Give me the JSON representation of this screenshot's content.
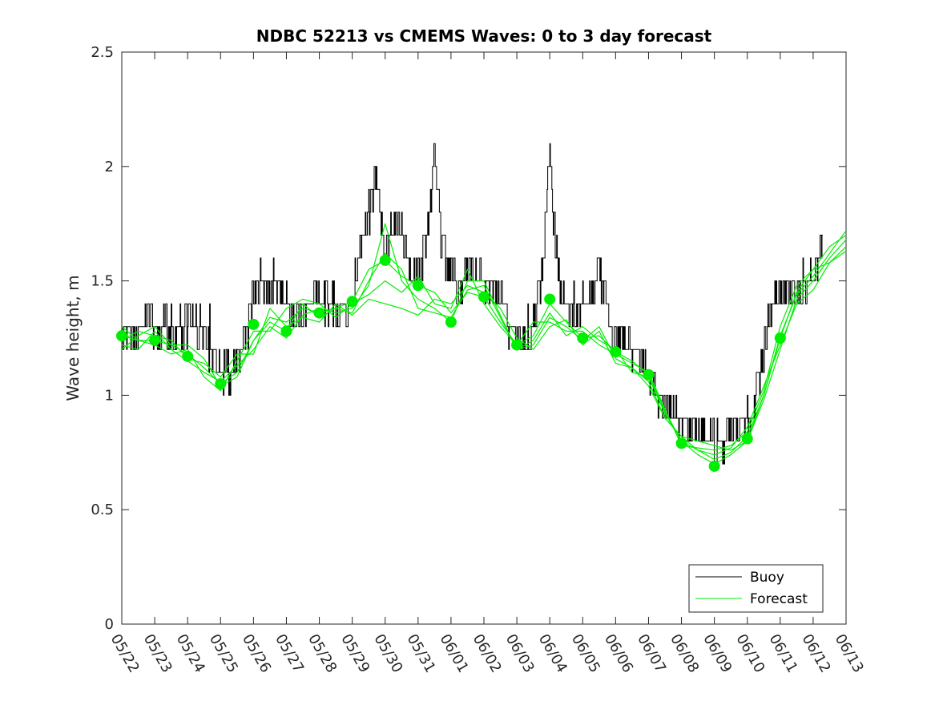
{
  "chart_data": {
    "type": "line",
    "title": "NDBC 52213 vs CMEMS Waves: 0 to 3 day forecast",
    "ylabel": "Wave height, m",
    "xlabel": "",
    "ylim": [
      0,
      2.5
    ],
    "yticks": [
      "0",
      "0.5",
      "1",
      "1.5",
      "2",
      "2.5"
    ],
    "x_tick_labels": [
      "05/22",
      "05/23",
      "05/24",
      "05/25",
      "05/26",
      "05/27",
      "05/28",
      "05/29",
      "05/30",
      "05/31",
      "06/01",
      "06/02",
      "06/03",
      "06/04",
      "06/05",
      "06/06",
      "06/07",
      "06/08",
      "06/09",
      "06/10",
      "06/11",
      "06/12",
      "06/13"
    ],
    "grid": false,
    "legend": {
      "placement": "bottom-right",
      "entries": [
        "Buoy",
        "Forecast"
      ]
    },
    "colors": {
      "buoy": "#000000",
      "forecast": "#00ee00"
    },
    "buoy_anchors": [
      [
        0.0,
        1.28
      ],
      [
        0.3,
        1.24
      ],
      [
        0.6,
        1.28
      ],
      [
        0.8,
        1.35
      ],
      [
        1.0,
        1.28
      ],
      [
        1.3,
        1.3
      ],
      [
        1.6,
        1.28
      ],
      [
        1.9,
        1.3
      ],
      [
        2.2,
        1.32
      ],
      [
        2.5,
        1.25
      ],
      [
        2.8,
        1.18
      ],
      [
        3.0,
        1.12
      ],
      [
        3.2,
        1.1
      ],
      [
        3.4,
        1.12
      ],
      [
        3.6,
        1.2
      ],
      [
        3.8,
        1.3
      ],
      [
        4.0,
        1.42
      ],
      [
        4.2,
        1.48
      ],
      [
        4.5,
        1.5
      ],
      [
        4.8,
        1.45
      ],
      [
        5.0,
        1.38
      ],
      [
        5.3,
        1.35
      ],
      [
        5.6,
        1.38
      ],
      [
        5.9,
        1.42
      ],
      [
        6.2,
        1.4
      ],
      [
        6.5,
        1.38
      ],
      [
        6.8,
        1.4
      ],
      [
        7.0,
        1.45
      ],
      [
        7.2,
        1.6
      ],
      [
        7.4,
        1.75
      ],
      [
        7.6,
        1.85
      ],
      [
        7.7,
        2.0
      ],
      [
        7.8,
        1.9
      ],
      [
        7.9,
        1.7
      ],
      [
        8.0,
        1.6
      ],
      [
        8.2,
        1.72
      ],
      [
        8.4,
        1.78
      ],
      [
        8.6,
        1.65
      ],
      [
        8.8,
        1.55
      ],
      [
        9.0,
        1.52
      ],
      [
        9.2,
        1.62
      ],
      [
        9.4,
        1.88
      ],
      [
        9.5,
        2.05
      ],
      [
        9.6,
        1.9
      ],
      [
        9.7,
        1.7
      ],
      [
        9.9,
        1.55
      ],
      [
        10.0,
        1.52
      ],
      [
        10.2,
        1.45
      ],
      [
        10.4,
        1.5
      ],
      [
        10.6,
        1.58
      ],
      [
        10.8,
        1.52
      ],
      [
        11.0,
        1.5
      ],
      [
        11.2,
        1.48
      ],
      [
        11.4,
        1.45
      ],
      [
        11.6,
        1.38
      ],
      [
        11.8,
        1.28
      ],
      [
        12.0,
        1.25
      ],
      [
        12.2,
        1.22
      ],
      [
        12.4,
        1.25
      ],
      [
        12.6,
        1.4
      ],
      [
        12.8,
        1.6
      ],
      [
        12.9,
        1.85
      ],
      [
        13.0,
        2.05
      ],
      [
        13.1,
        1.8
      ],
      [
        13.2,
        1.6
      ],
      [
        13.4,
        1.42
      ],
      [
        13.6,
        1.35
      ],
      [
        13.8,
        1.38
      ],
      [
        14.0,
        1.4
      ],
      [
        14.2,
        1.42
      ],
      [
        14.4,
        1.5
      ],
      [
        14.5,
        1.55
      ],
      [
        14.7,
        1.4
      ],
      [
        14.9,
        1.28
      ],
      [
        15.0,
        1.25
      ],
      [
        15.2,
        1.25
      ],
      [
        15.4,
        1.22
      ],
      [
        15.6,
        1.2
      ],
      [
        15.8,
        1.15
      ],
      [
        16.0,
        1.1
      ],
      [
        16.2,
        1.05
      ],
      [
        16.4,
        0.98
      ],
      [
        16.6,
        0.93
      ],
      [
        16.8,
        0.9
      ],
      [
        17.0,
        0.88
      ],
      [
        17.2,
        0.86
      ],
      [
        17.4,
        0.85
      ],
      [
        17.6,
        0.84
      ],
      [
        17.8,
        0.82
      ],
      [
        18.0,
        0.8
      ],
      [
        18.2,
        0.8
      ],
      [
        18.4,
        0.82
      ],
      [
        18.6,
        0.84
      ],
      [
        18.8,
        0.86
      ],
      [
        19.0,
        0.88
      ],
      [
        19.2,
        0.95
      ],
      [
        19.4,
        1.12
      ],
      [
        19.6,
        1.3
      ],
      [
        19.8,
        1.4
      ],
      [
        20.0,
        1.45
      ],
      [
        20.2,
        1.48
      ],
      [
        20.4,
        1.45
      ],
      [
        20.6,
        1.45
      ],
      [
        20.8,
        1.48
      ],
      [
        21.0,
        1.55
      ],
      [
        21.2,
        1.62
      ],
      [
        21.3,
        1.65
      ]
    ],
    "forecast_dots": [
      [
        0,
        1.26
      ],
      [
        1,
        1.24
      ],
      [
        2,
        1.17
      ],
      [
        3,
        1.05
      ],
      [
        4,
        1.31
      ],
      [
        5,
        1.28
      ],
      [
        6,
        1.36
      ],
      [
        7,
        1.41
      ],
      [
        8,
        1.59
      ],
      [
        9,
        1.48
      ],
      [
        10,
        1.32
      ],
      [
        11,
        1.43
      ],
      [
        12,
        1.22
      ],
      [
        13,
        1.42
      ],
      [
        14,
        1.25
      ],
      [
        15,
        1.19
      ],
      [
        16,
        1.09
      ],
      [
        17,
        0.79
      ],
      [
        18,
        0.69
      ],
      [
        19,
        0.81
      ],
      [
        20,
        1.25
      ]
    ],
    "forecast_series": [
      {
        "values": [
          [
            0,
            1.26
          ],
          [
            0.5,
            1.24
          ],
          [
            1,
            1.24
          ],
          [
            1.5,
            1.22
          ],
          [
            2,
            1.18
          ],
          [
            2.5,
            1.12
          ],
          [
            3,
            1.05
          ],
          [
            3.5,
            1.1
          ],
          [
            4,
            1.24
          ],
          [
            4.5,
            1.34
          ],
          [
            5,
            1.32
          ],
          [
            5.5,
            1.38
          ],
          [
            6,
            1.36
          ],
          [
            6.5,
            1.38
          ],
          [
            7,
            1.41
          ],
          [
            7.5,
            1.55
          ],
          [
            8,
            1.59
          ],
          [
            8.5,
            1.52
          ],
          [
            9,
            1.48
          ],
          [
            9.5,
            1.45
          ],
          [
            10,
            1.36
          ],
          [
            10.5,
            1.45
          ],
          [
            11,
            1.43
          ],
          [
            11.5,
            1.32
          ],
          [
            12,
            1.22
          ],
          [
            12.5,
            1.26
          ],
          [
            13,
            1.4
          ],
          [
            13.5,
            1.32
          ],
          [
            14,
            1.25
          ],
          [
            14.5,
            1.26
          ],
          [
            15,
            1.19
          ],
          [
            15.5,
            1.15
          ],
          [
            16,
            1.09
          ],
          [
            16.5,
            0.93
          ],
          [
            17,
            0.8
          ],
          [
            17.5,
            0.76
          ],
          [
            18,
            0.72
          ],
          [
            18.5,
            0.75
          ],
          [
            19,
            0.82
          ],
          [
            19.5,
            1.0
          ],
          [
            20,
            1.25
          ],
          [
            20.5,
            1.45
          ],
          [
            21,
            1.55
          ],
          [
            21.5,
            1.65
          ],
          [
            22,
            1.7
          ]
        ]
      },
      {
        "values": [
          [
            0,
            1.22
          ],
          [
            0.5,
            1.2
          ],
          [
            1,
            1.28
          ],
          [
            1.5,
            1.2
          ],
          [
            2,
            1.15
          ],
          [
            2.5,
            1.1
          ],
          [
            3,
            1.06
          ],
          [
            3.5,
            1.13
          ],
          [
            4,
            1.2
          ],
          [
            4.5,
            1.3
          ],
          [
            5,
            1.25
          ],
          [
            5.5,
            1.35
          ],
          [
            6,
            1.38
          ],
          [
            6.5,
            1.36
          ],
          [
            7,
            1.38
          ],
          [
            7.5,
            1.48
          ],
          [
            8,
            1.75
          ],
          [
            8.5,
            1.5
          ],
          [
            9,
            1.42
          ],
          [
            9.5,
            1.38
          ],
          [
            10,
            1.32
          ],
          [
            10.5,
            1.5
          ],
          [
            11,
            1.5
          ],
          [
            11.5,
            1.35
          ],
          [
            12,
            1.2
          ],
          [
            12.5,
            1.22
          ],
          [
            13,
            1.34
          ],
          [
            13.5,
            1.3
          ],
          [
            14,
            1.24
          ],
          [
            14.5,
            1.3
          ],
          [
            15,
            1.16
          ],
          [
            15.5,
            1.12
          ],
          [
            16,
            1.06
          ],
          [
            16.5,
            0.9
          ],
          [
            17,
            0.82
          ],
          [
            17.5,
            0.8
          ],
          [
            18,
            0.78
          ],
          [
            18.5,
            0.76
          ],
          [
            19,
            0.8
          ],
          [
            19.5,
            0.98
          ],
          [
            20,
            1.2
          ],
          [
            20.5,
            1.42
          ],
          [
            21,
            1.5
          ],
          [
            21.5,
            1.6
          ],
          [
            22,
            1.68
          ]
        ]
      },
      {
        "values": [
          [
            0,
            1.3
          ],
          [
            0.5,
            1.24
          ],
          [
            1,
            1.22
          ],
          [
            1.5,
            1.18
          ],
          [
            2,
            1.2
          ],
          [
            2.5,
            1.08
          ],
          [
            3,
            1.02
          ],
          [
            3.5,
            1.15
          ],
          [
            4,
            1.28
          ],
          [
            4.5,
            1.28
          ],
          [
            5,
            1.38
          ],
          [
            5.5,
            1.42
          ],
          [
            6,
            1.4
          ],
          [
            6.5,
            1.34
          ],
          [
            7,
            1.4
          ],
          [
            7.5,
            1.44
          ],
          [
            8,
            1.5
          ],
          [
            8.5,
            1.45
          ],
          [
            9,
            1.52
          ],
          [
            9.5,
            1.4
          ],
          [
            10,
            1.38
          ],
          [
            10.5,
            1.55
          ],
          [
            11,
            1.4
          ],
          [
            11.5,
            1.3
          ],
          [
            12,
            1.22
          ],
          [
            12.5,
            1.32
          ],
          [
            13,
            1.32
          ],
          [
            13.5,
            1.28
          ],
          [
            14,
            1.28
          ],
          [
            14.5,
            1.22
          ],
          [
            15,
            1.18
          ],
          [
            15.5,
            1.14
          ],
          [
            16,
            1.1
          ],
          [
            16.5,
            0.94
          ],
          [
            17,
            0.78
          ],
          [
            17.5,
            0.77
          ],
          [
            18,
            0.76
          ],
          [
            18.5,
            0.78
          ],
          [
            19,
            0.84
          ],
          [
            19.5,
            1.02
          ],
          [
            20,
            1.3
          ],
          [
            20.5,
            1.48
          ],
          [
            21,
            1.55
          ],
          [
            21.5,
            1.58
          ],
          [
            22,
            1.63
          ]
        ]
      },
      {
        "values": [
          [
            0,
            1.24
          ],
          [
            0.5,
            1.28
          ],
          [
            1,
            1.26
          ],
          [
            1.5,
            1.24
          ],
          [
            2,
            1.16
          ],
          [
            2.5,
            1.14
          ],
          [
            3,
            1.08
          ],
          [
            3.5,
            1.18
          ],
          [
            4,
            1.18
          ],
          [
            4.5,
            1.38
          ],
          [
            5,
            1.3
          ],
          [
            5.5,
            1.34
          ],
          [
            6,
            1.32
          ],
          [
            6.5,
            1.4
          ],
          [
            7,
            1.35
          ],
          [
            7.5,
            1.42
          ],
          [
            8,
            1.4
          ],
          [
            8.5,
            1.38
          ],
          [
            9,
            1.35
          ],
          [
            9.5,
            1.42
          ],
          [
            10,
            1.4
          ],
          [
            10.5,
            1.48
          ],
          [
            11,
            1.45
          ],
          [
            11.5,
            1.38
          ],
          [
            12,
            1.25
          ],
          [
            12.5,
            1.2
          ],
          [
            13,
            1.3
          ],
          [
            13.5,
            1.33
          ],
          [
            14,
            1.22
          ],
          [
            14.5,
            1.28
          ],
          [
            15,
            1.14
          ],
          [
            15.5,
            1.12
          ],
          [
            16,
            1.04
          ],
          [
            16.5,
            0.9
          ],
          [
            17,
            0.82
          ],
          [
            17.5,
            0.76
          ],
          [
            18,
            0.74
          ],
          [
            18.5,
            0.77
          ],
          [
            19,
            0.86
          ],
          [
            19.5,
            1.04
          ],
          [
            20,
            1.22
          ],
          [
            20.5,
            1.4
          ],
          [
            21,
            1.46
          ],
          [
            21.5,
            1.58
          ],
          [
            22,
            1.65
          ]
        ]
      },
      {
        "values": [
          [
            0,
            1.2
          ],
          [
            0.5,
            1.26
          ],
          [
            1,
            1.3
          ],
          [
            1.5,
            1.22
          ],
          [
            2,
            1.22
          ],
          [
            2.5,
            1.16
          ],
          [
            3,
            1.04
          ],
          [
            3.5,
            1.08
          ],
          [
            4,
            1.24
          ],
          [
            4.5,
            1.32
          ],
          [
            5,
            1.28
          ],
          [
            5.5,
            1.4
          ],
          [
            6,
            1.34
          ],
          [
            6.5,
            1.38
          ],
          [
            7,
            1.36
          ],
          [
            7.5,
            1.5
          ],
          [
            8,
            1.62
          ],
          [
            8.5,
            1.55
          ],
          [
            9,
            1.38
          ],
          [
            9.5,
            1.36
          ],
          [
            10,
            1.34
          ],
          [
            10.5,
            1.46
          ],
          [
            11,
            1.48
          ],
          [
            11.5,
            1.34
          ],
          [
            12,
            1.2
          ],
          [
            12.5,
            1.24
          ],
          [
            13,
            1.36
          ],
          [
            13.5,
            1.26
          ],
          [
            14,
            1.3
          ],
          [
            14.5,
            1.24
          ],
          [
            15,
            1.2
          ],
          [
            15.5,
            1.1
          ],
          [
            16,
            1.08
          ],
          [
            16.5,
            0.92
          ],
          [
            17,
            0.8
          ],
          [
            17.5,
            0.74
          ],
          [
            18,
            0.7
          ],
          [
            18.5,
            0.74
          ],
          [
            19,
            0.8
          ],
          [
            19.5,
            1.0
          ],
          [
            20,
            1.26
          ],
          [
            20.5,
            1.44
          ],
          [
            21,
            1.52
          ],
          [
            21.5,
            1.62
          ],
          [
            22,
            1.72
          ]
        ]
      }
    ]
  }
}
